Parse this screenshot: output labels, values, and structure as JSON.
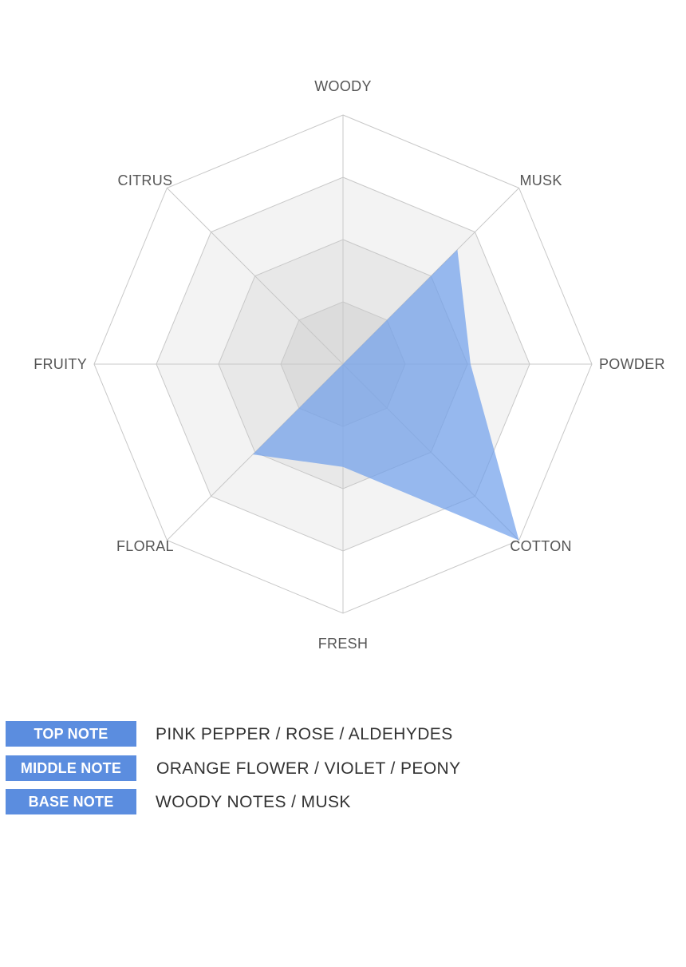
{
  "chart_data": {
    "type": "radar",
    "axes": [
      "WOODY",
      "MUSK",
      "POWDER",
      "COTTON",
      "FRESH",
      "FLORAL",
      "FRUITY",
      "CITRUS"
    ],
    "levels": 4,
    "max": 4,
    "series": [
      {
        "values": [
          0,
          2.6,
          2.05,
          4.0,
          1.65,
          2.05,
          0,
          0
        ]
      }
    ],
    "colors": {
      "series_fill": "#6d9eeb",
      "grid_line": "#c8c8c8",
      "ring_shades": [
        "#ffffff",
        "#f3f3f3",
        "#e8e8e8",
        "#dcdcdc"
      ]
    }
  },
  "notes": [
    {
      "label": "TOP NOTE",
      "value": "PINK PEPPER / ROSE / ALDEHYDES"
    },
    {
      "label": "MIDDLE NOTE",
      "value": "ORANGE FLOWER / VIOLET / PEONY"
    },
    {
      "label": "BASE NOTE",
      "value": "WOODY NOTES / MUSK"
    }
  ],
  "colors": {
    "badge": "#5b8ddf"
  }
}
